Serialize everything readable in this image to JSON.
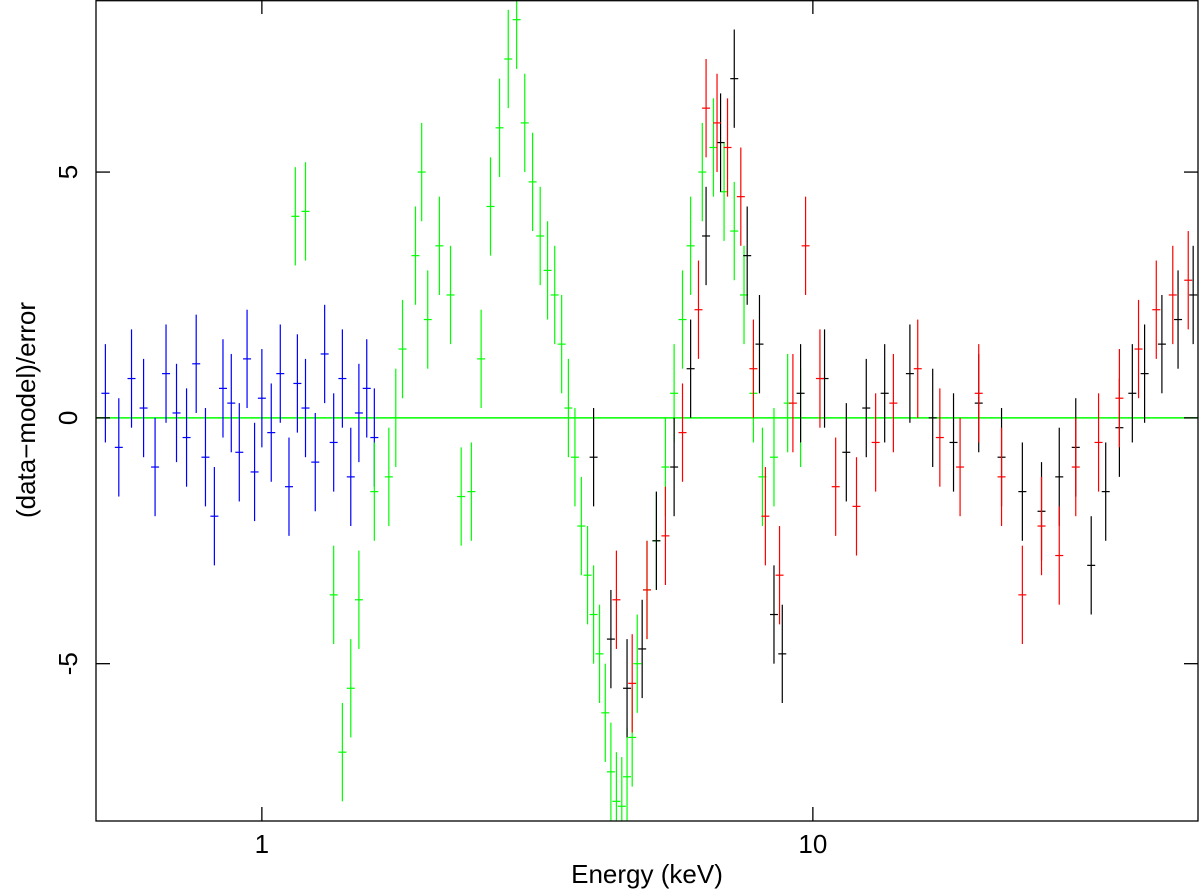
{
  "chart_data": {
    "type": "errorbar",
    "xlabel": "Energy (keV)",
    "ylabel": "(data−model)/error",
    "xscale": "log",
    "xlim": [
      0.5,
      50
    ],
    "ylim": [
      -8.2,
      8.5
    ],
    "xticks": [
      1,
      10
    ],
    "yticks": [
      -5,
      0,
      5
    ],
    "zero_line_color": "#00ff00",
    "series": [
      {
        "color": "#0000ff",
        "x": [
          0.52,
          0.55,
          0.58,
          0.61,
          0.64,
          0.67,
          0.7,
          0.73,
          0.76,
          0.79,
          0.82,
          0.85,
          0.88,
          0.91,
          0.94,
          0.97,
          1.0,
          1.04,
          1.08,
          1.12,
          1.16,
          1.2,
          1.25,
          1.3,
          1.35,
          1.4,
          1.45,
          1.5,
          1.55,
          1.6
        ],
        "values": [
          0.5,
          -0.6,
          0.8,
          0.2,
          -1.0,
          0.9,
          0.1,
          -0.4,
          1.1,
          -0.8,
          -2.0,
          0.6,
          0.3,
          -0.7,
          1.2,
          -1.1,
          0.4,
          -0.3,
          0.9,
          -1.4,
          0.7,
          0.2,
          -0.9,
          1.3,
          -0.5,
          0.8,
          -1.2,
          0.1,
          0.6,
          -0.4
        ],
        "errors": [
          1,
          1,
          1,
          1,
          1,
          1,
          1,
          1,
          1,
          1,
          1,
          1,
          1,
          1,
          1,
          1,
          1,
          1,
          1,
          1,
          1,
          1,
          1,
          1,
          1,
          1,
          1,
          1,
          1,
          1
        ]
      },
      {
        "color": "#00ff00",
        "x": [
          1.15,
          1.2,
          1.35,
          1.4,
          1.45,
          1.5,
          1.6,
          1.7,
          1.75,
          1.8,
          1.9,
          1.95,
          2.0,
          2.1,
          2.2,
          2.3,
          2.4,
          2.5,
          2.6,
          2.7,
          2.8,
          2.9,
          3.0,
          3.1,
          3.2,
          3.3,
          3.4,
          3.5,
          3.6,
          3.7,
          3.8,
          3.9,
          4.0,
          4.1,
          4.2,
          4.3,
          4.4,
          4.5,
          4.6,
          4.7,
          4.8,
          5.0,
          5.2,
          5.4,
          5.6,
          5.8,
          6.0,
          6.3,
          6.6,
          6.9,
          7.2,
          7.5,
          7.8,
          8.1,
          8.5,
          9.0,
          9.5
        ],
        "values": [
          4.1,
          4.2,
          -3.6,
          -6.8,
          -5.5,
          -3.7,
          -1.5,
          -1.2,
          0.0,
          1.4,
          3.3,
          5.0,
          2.0,
          3.5,
          2.5,
          -1.6,
          -1.5,
          1.2,
          4.3,
          5.9,
          7.3,
          8.1,
          6.0,
          4.8,
          3.7,
          3.0,
          2.5,
          1.5,
          0.2,
          -0.8,
          -2.2,
          -3.2,
          -4.0,
          -4.8,
          -6.0,
          -7.2,
          -7.8,
          -7.9,
          -7.3,
          -6.5,
          -5.0,
          -3.5,
          -2.5,
          -1.0,
          0.5,
          2.0,
          3.5,
          5.0,
          5.5,
          4.6,
          3.8,
          2.5,
          0.5,
          -1.2,
          -0.8,
          0.3,
          0.0
        ],
        "errors": [
          1,
          1,
          1,
          1,
          1,
          1,
          1,
          1,
          1,
          1,
          1,
          1,
          1,
          1,
          1,
          1,
          1,
          1,
          1,
          1,
          1,
          1,
          1,
          1,
          1,
          1,
          1,
          1,
          1,
          1,
          1,
          1,
          1,
          1,
          1,
          1,
          1,
          1,
          1,
          1,
          1,
          1,
          1,
          1,
          1,
          1,
          1,
          1,
          1,
          1,
          1,
          1,
          1,
          1,
          1,
          1,
          1
        ]
      },
      {
        "color": "#000000",
        "x": [
          4.0,
          4.3,
          4.6,
          4.9,
          5.2,
          5.6,
          6.0,
          6.4,
          6.8,
          7.2,
          7.6,
          8.0,
          8.5,
          8.8,
          9.5,
          10.5,
          11.5,
          12.5,
          13.5,
          15,
          16.5,
          18,
          20,
          22,
          24,
          26,
          28,
          30,
          32,
          34,
          36,
          38,
          40,
          43,
          46,
          49
        ],
        "values": [
          -0.8,
          -4.5,
          -5.5,
          -4.7,
          -2.5,
          -1.0,
          1.0,
          3.7,
          5.6,
          6.9,
          3.3,
          1.5,
          -4.0,
          -4.8,
          0.5,
          0.8,
          -0.7,
          0.2,
          0.5,
          0.9,
          0.0,
          -0.5,
          0.3,
          -0.8,
          -1.5,
          -1.9,
          -1.2,
          -0.6,
          -3.0,
          -1.5,
          -0.2,
          0.5,
          0.9,
          1.5,
          2.0,
          2.5
        ],
        "errors": [
          1,
          1,
          1,
          1,
          1,
          1,
          1,
          1,
          1,
          1,
          1,
          1,
          1,
          1,
          1,
          1,
          1,
          1,
          1,
          1,
          1,
          1,
          1,
          1,
          1,
          1,
          1,
          1,
          1,
          1,
          1,
          1,
          1,
          1,
          1,
          1
        ]
      },
      {
        "color": "#ff0000",
        "x": [
          4.4,
          4.7,
          5.0,
          5.4,
          5.8,
          6.2,
          6.4,
          6.7,
          7.0,
          7.4,
          7.8,
          8.2,
          8.7,
          9.2,
          9.7,
          10.3,
          11,
          12,
          13,
          14,
          15.5,
          17,
          18.5,
          20,
          22,
          24,
          26,
          28,
          30,
          33,
          36,
          39,
          42,
          45,
          48
        ],
        "values": [
          -3.7,
          -5.4,
          -3.5,
          -2.4,
          -0.3,
          2.2,
          6.3,
          6.0,
          5.5,
          4.5,
          1.0,
          -2.0,
          -3.2,
          0.3,
          3.5,
          0.8,
          -1.4,
          -1.8,
          -0.5,
          0.3,
          1.0,
          -0.4,
          -1.0,
          0.5,
          -1.2,
          -3.6,
          -2.2,
          -2.8,
          -1.0,
          -0.5,
          0.4,
          1.4,
          2.2,
          2.5,
          2.8
        ],
        "errors": [
          1,
          1,
          1,
          1,
          1,
          1,
          1,
          1,
          1,
          1,
          1,
          1,
          1,
          1,
          1,
          1,
          1,
          1,
          1,
          1,
          1,
          1,
          1,
          1,
          1,
          1,
          1,
          1,
          1,
          1,
          1,
          1,
          1,
          1,
          1
        ]
      }
    ]
  }
}
